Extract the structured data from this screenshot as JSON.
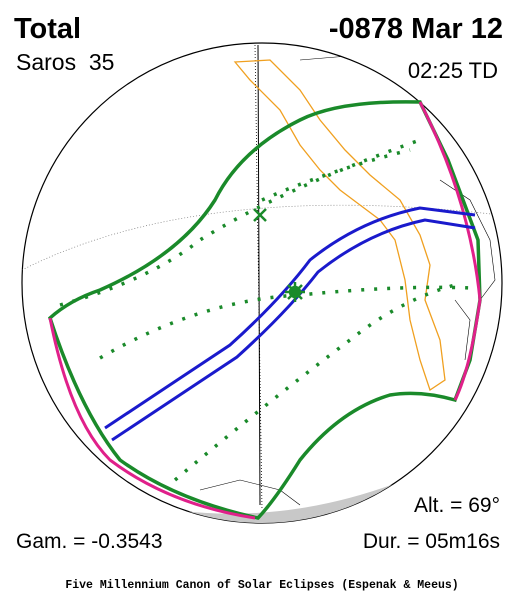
{
  "header": {
    "eclipse_type": "Total",
    "saros": "Saros  35",
    "date": "-0878 Mar 12",
    "time": "02:25 TD"
  },
  "parameters": {
    "altitude": "Alt. = 69°",
    "gamma": "Gam. = -0.3543",
    "duration": "Dur. = 05m16s"
  },
  "footer": "Five Millennium Canon of Solar Eclipses (Espenak & Meeus)"
}
